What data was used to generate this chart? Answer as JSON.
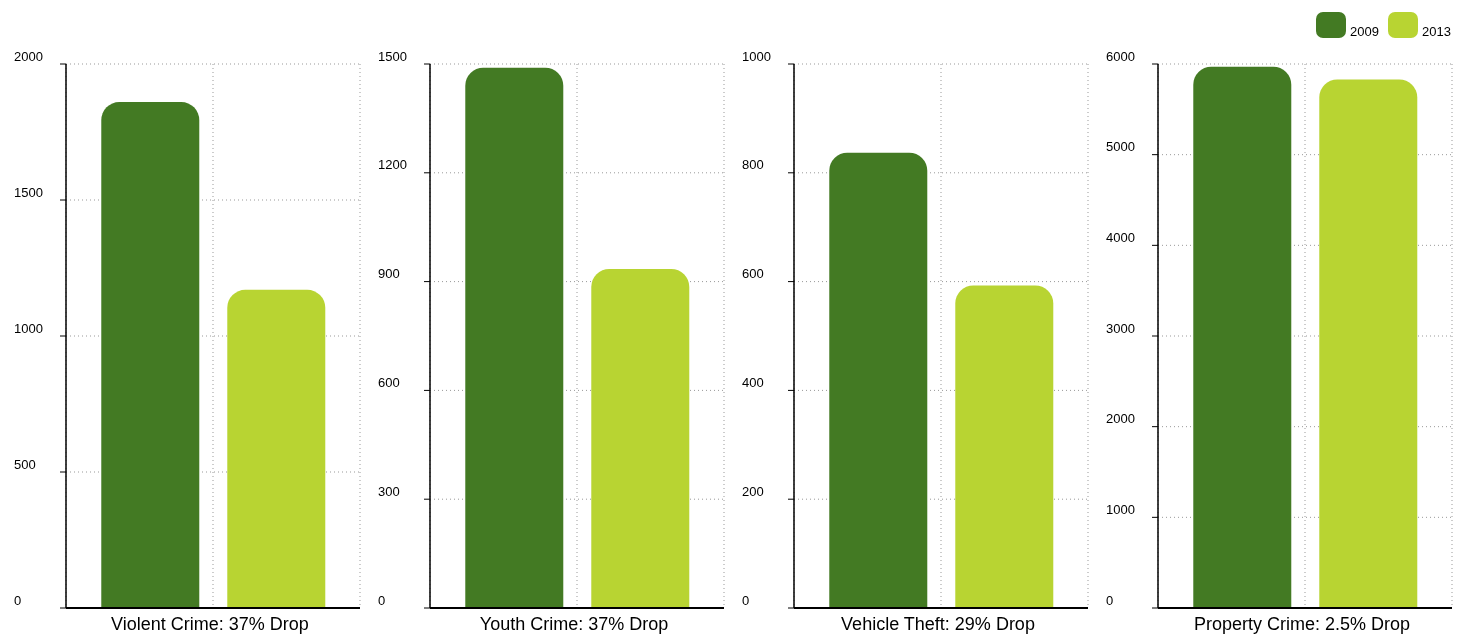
{
  "chart_data": [
    {
      "type": "bar",
      "xlabel": "Violent Crime: 37% Drop",
      "categories": [
        null
      ],
      "series": [
        {
          "color": "#437a23",
          "values": [
            1860
          ]
        },
        {
          "color": "#b8d432",
          "values": [
            1170
          ]
        }
      ],
      "ylim": [
        0,
        2000
      ],
      "yticks": [
        0,
        500,
        1000,
        1500,
        2000
      ],
      "grid": true
    },
    {
      "type": "bar",
      "xlabel": "Youth Crime: 37% Drop",
      "categories": [
        null
      ],
      "series": [
        {
          "color": "#437a23",
          "values": [
            1490
          ]
        },
        {
          "color": "#b8d432",
          "values": [
            935
          ]
        }
      ],
      "ylim": [
        0,
        1500
      ],
      "yticks": [
        0,
        300,
        600,
        900,
        1200,
        1500
      ],
      "grid": true
    },
    {
      "type": "bar",
      "xlabel": "Vehicle Theft: 29% Drop",
      "categories": [
        null
      ],
      "series": [
        {
          "color": "#437a23",
          "values": [
            837
          ]
        },
        {
          "color": "#b8d432",
          "values": [
            593
          ]
        }
      ],
      "ylim": [
        0,
        1000
      ],
      "yticks": [
        0,
        200,
        400,
        600,
        800,
        1000
      ],
      "grid": true
    },
    {
      "type": "bar",
      "xlabel": "Property Crime: 2.5% Drop",
      "categories": [
        null
      ],
      "series": [
        {
          "name": "2009",
          "color": "#437a23",
          "values": [
            5970
          ]
        },
        {
          "name": "2013",
          "color": "#b8d432",
          "values": [
            5830
          ]
        }
      ],
      "ylim": [
        0,
        6000
      ],
      "yticks": [
        0,
        1000,
        2000,
        3000,
        4000,
        5000,
        6000
      ],
      "grid": true,
      "legend": "top right"
    }
  ]
}
